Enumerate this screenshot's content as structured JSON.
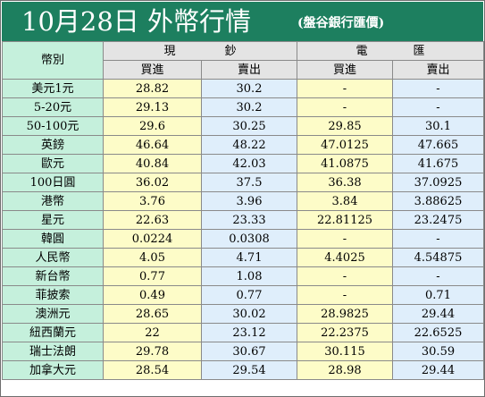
{
  "header": {
    "title": "10月28日 外幣行情",
    "source": "(盤谷銀行匯價)"
  },
  "columns": {
    "currency": "幣別",
    "cash_group": [
      "現",
      "鈔"
    ],
    "telegraphic_group": [
      "電",
      "匯"
    ],
    "buy": "買進",
    "sell": "賣出"
  },
  "colors": {
    "title_bar": "#1d7f5f",
    "label_cells": "#c5f0dc",
    "cash_buy": "#fdfcc8",
    "cash_sell": "#dfeefb",
    "tt_buy": "#fdfcc8",
    "tt_sell": "#dfeefb"
  },
  "rows": [
    {
      "currency": "美元1元",
      "cash_buy": "28.82",
      "cash_sell": "30.2",
      "tt_buy": "-",
      "tt_sell": "-"
    },
    {
      "currency": "5-20元",
      "cash_buy": "29.13",
      "cash_sell": "30.2",
      "tt_buy": "-",
      "tt_sell": "-"
    },
    {
      "currency": "50-100元",
      "cash_buy": "29.6",
      "cash_sell": "30.25",
      "tt_buy": "29.85",
      "tt_sell": "30.1"
    },
    {
      "currency": "英鎊",
      "cash_buy": "46.64",
      "cash_sell": "48.22",
      "tt_buy": "47.0125",
      "tt_sell": "47.665"
    },
    {
      "currency": "歐元",
      "cash_buy": "40.84",
      "cash_sell": "42.03",
      "tt_buy": "41.0875",
      "tt_sell": "41.675"
    },
    {
      "currency": "100日圓",
      "cash_buy": "36.02",
      "cash_sell": "37.5",
      "tt_buy": "36.38",
      "tt_sell": "37.0925"
    },
    {
      "currency": "港幣",
      "cash_buy": "3.76",
      "cash_sell": "3.96",
      "tt_buy": "3.84",
      "tt_sell": "3.88625"
    },
    {
      "currency": "星元",
      "cash_buy": "22.63",
      "cash_sell": "23.33",
      "tt_buy": "22.81125",
      "tt_sell": "23.2475"
    },
    {
      "currency": "韓圓",
      "cash_buy": "0.0224",
      "cash_sell": "0.0308",
      "tt_buy": "-",
      "tt_sell": "-"
    },
    {
      "currency": "人民幣",
      "cash_buy": "4.05",
      "cash_sell": "4.71",
      "tt_buy": "4.4025",
      "tt_sell": "4.54875"
    },
    {
      "currency": "新台幣",
      "cash_buy": "0.77",
      "cash_sell": "1.08",
      "tt_buy": "-",
      "tt_sell": "-"
    },
    {
      "currency": "菲披索",
      "cash_buy": "0.49",
      "cash_sell": "0.77",
      "tt_buy": "-",
      "tt_sell": "0.71"
    },
    {
      "currency": "澳洲元",
      "cash_buy": "28.65",
      "cash_sell": "30.02",
      "tt_buy": "28.9825",
      "tt_sell": "29.44"
    },
    {
      "currency": "紐西蘭元",
      "cash_buy": "22",
      "cash_sell": "23.12",
      "tt_buy": "22.2375",
      "tt_sell": "22.6525"
    },
    {
      "currency": "瑞士法朗",
      "cash_buy": "29.78",
      "cash_sell": "30.67",
      "tt_buy": "30.115",
      "tt_sell": "30.59"
    },
    {
      "currency": "加拿大元",
      "cash_buy": "28.54",
      "cash_sell": "29.54",
      "tt_buy": "28.98",
      "tt_sell": "29.44"
    }
  ]
}
